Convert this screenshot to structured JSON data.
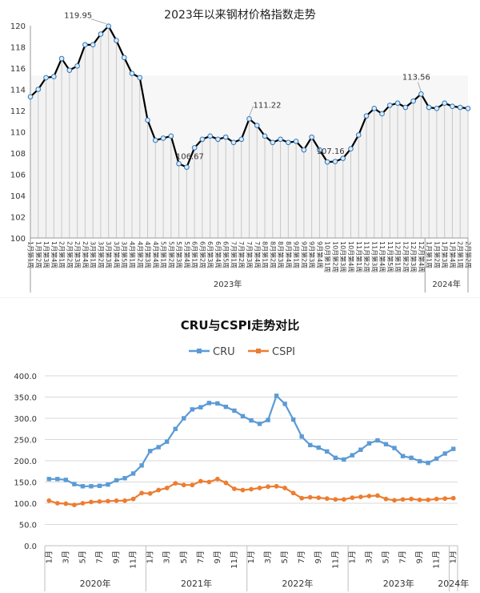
{
  "chart_data": [
    {
      "type": "line",
      "title": "2023年以来钢材价格指数走势",
      "ylim": [
        100,
        120
      ],
      "yticks": [
        100,
        102,
        104,
        106,
        108,
        110,
        112,
        114,
        116,
        118,
        120
      ],
      "grid": false,
      "x": [
        "1月第1周",
        "1月第2周",
        "1月第3周",
        "1月第4周",
        "2月第1周",
        "2月第2周",
        "2月第3周",
        "2月第4周",
        "3月第1周",
        "3月第2周",
        "3月第3周",
        "3月第4周",
        "3月第5周",
        "4月第1周",
        "4月第2周",
        "4月第3周",
        "4月第4周",
        "5月第1周",
        "5月第2周",
        "5月第3周",
        "5月第4周",
        "6月第1周",
        "6月第2周",
        "6月第3周",
        "6月第4周",
        "6月第5周",
        "7月第1周",
        "7月第2周",
        "7月第3周",
        "7月第4周",
        "8月第1周",
        "8月第2周",
        "8月第3周",
        "8月第4周",
        "9月第1周",
        "9月第2周",
        "9月第3周",
        "9月第4周",
        "10月第1周",
        "10月第2周",
        "10月第3周",
        "10月第4周",
        "11月第1周",
        "11月第2周",
        "11月第3周",
        "11月第4周",
        "11月第5周",
        "12月第1周",
        "12月第2周",
        "12月第3周",
        "12月第4周",
        "1月第1周",
        "1月第2周",
        "1月第3周",
        "1月第4周",
        "2月第1周",
        "2月第2周"
      ],
      "x_display": [
        "1月第1周",
        "1月第2周",
        "1月第3周",
        "1月第4周",
        "2月第1周",
        "2月第2周",
        "2月第3周",
        "2月第4周",
        "3月第1周",
        "3月第2周",
        "3月第3周",
        "3月第4周",
        "3月第5周",
        "4月第1周",
        "4月第2周",
        "4月第3周",
        "4月第4周",
        "5月第1周",
        "5月第2周",
        "5月第3周",
        "5月第4周",
        "6月第1周",
        "6月第2周",
        "6月第3周",
        "6月第4周",
        "6月第5周",
        "7月第1周",
        "7月第2周",
        "7月第3周",
        "7月第4周",
        "8月第1周",
        "8月第2周",
        "8月第3周",
        "8月第4周",
        "9月第1周",
        "9月第2周",
        "9月第3周",
        "9月第4周",
        "10月第1周",
        "10月第2周",
        "10月第3周",
        "10月第4周",
        "11月第1周",
        "11月第2周",
        "11月第3周",
        "11月第4周",
        "11月第5周",
        "12月第1周",
        "12月第2周",
        "12月第3周",
        "12月第4周",
        "1月第1周",
        "1月第2周",
        "1月第3周",
        "1月第4周",
        "2月第1周",
        "2月第2周"
      ],
      "groups": [
        {
          "label": "2023年",
          "count": 51
        },
        {
          "label": "2024年",
          "count": 6
        }
      ],
      "values": [
        113.3,
        114.0,
        115.1,
        115.2,
        116.9,
        115.8,
        116.2,
        118.2,
        118.2,
        119.2,
        119.95,
        118.6,
        117.0,
        115.5,
        115.1,
        111.1,
        109.2,
        109.4,
        109.6,
        107.0,
        106.67,
        108.5,
        109.3,
        109.6,
        109.3,
        109.5,
        109.0,
        109.3,
        111.22,
        110.6,
        109.6,
        109.0,
        109.3,
        109.0,
        109.1,
        108.3,
        109.5,
        108.3,
        107.16,
        107.2,
        107.5,
        108.4,
        109.7,
        111.5,
        112.2,
        111.7,
        112.5,
        112.7,
        112.3,
        112.9,
        113.56,
        112.3,
        112.2,
        112.7,
        112.4,
        112.3,
        112.2
      ],
      "annotations": [
        {
          "index": 10,
          "text": "119.95"
        },
        {
          "index": 20,
          "text": "106.67"
        },
        {
          "index": 28,
          "text": "111.22"
        },
        {
          "index": 38,
          "text": "107.16"
        },
        {
          "index": 50,
          "text": "113.56"
        }
      ],
      "colors": {
        "line": "#000000",
        "marker_fill": "#ddebf7",
        "marker_stroke": "#2e75b6",
        "drop_line": "#c8c8c8",
        "area": "#f2f2f2"
      }
    },
    {
      "type": "line",
      "title": "CRU与CSPI走势对比",
      "ylim": [
        0,
        400
      ],
      "yticks": [
        "0.0",
        "50.0",
        "100.0",
        "150.0",
        "200.0",
        "250.0",
        "300.0",
        "350.0",
        "400.0"
      ],
      "grid": true,
      "legend": "top",
      "x_tick_labels": [
        "1月",
        "3月",
        "5月",
        "7月",
        "9月",
        "11月",
        "1月",
        "3月",
        "5月",
        "7月",
        "9月",
        "11月",
        "1月",
        "3月",
        "5月",
        "7月",
        "9月",
        "11月",
        "1月",
        "3月",
        "5月",
        "7月",
        "9月",
        "11月",
        "1月"
      ],
      "groups": [
        {
          "label": "2020年",
          "months": 12
        },
        {
          "label": "2021年",
          "months": 12
        },
        {
          "label": "2022年",
          "months": 12
        },
        {
          "label": "2023年",
          "months": 12
        },
        {
          "label": "2024年",
          "months": 1
        }
      ],
      "series": [
        {
          "name": "CRU",
          "color": "#5b9bd5",
          "values": [
            157,
            157,
            155,
            145,
            140,
            140,
            141,
            144,
            154,
            159,
            170,
            189,
            223,
            232,
            245,
            275,
            300,
            321,
            326,
            336,
            335,
            327,
            318,
            305,
            295,
            287,
            296,
            353,
            334,
            297,
            257,
            237,
            231,
            222,
            207,
            203,
            213,
            226,
            241,
            248,
            239,
            230,
            211,
            207,
            199,
            195,
            205,
            217,
            228
          ]
        },
        {
          "name": "CSPI",
          "color": "#ed7d31",
          "values": [
            106,
            100,
            99,
            96,
            100,
            103,
            104,
            105,
            106,
            106,
            110,
            124,
            123,
            131,
            136,
            147,
            143,
            143,
            152,
            150,
            157,
            148,
            134,
            131,
            133,
            136,
            139,
            140,
            136,
            124,
            112,
            114,
            113,
            111,
            109,
            109,
            113,
            115,
            117,
            118,
            110,
            107,
            109,
            110,
            108,
            108,
            110,
            111,
            112
          ]
        }
      ]
    }
  ]
}
